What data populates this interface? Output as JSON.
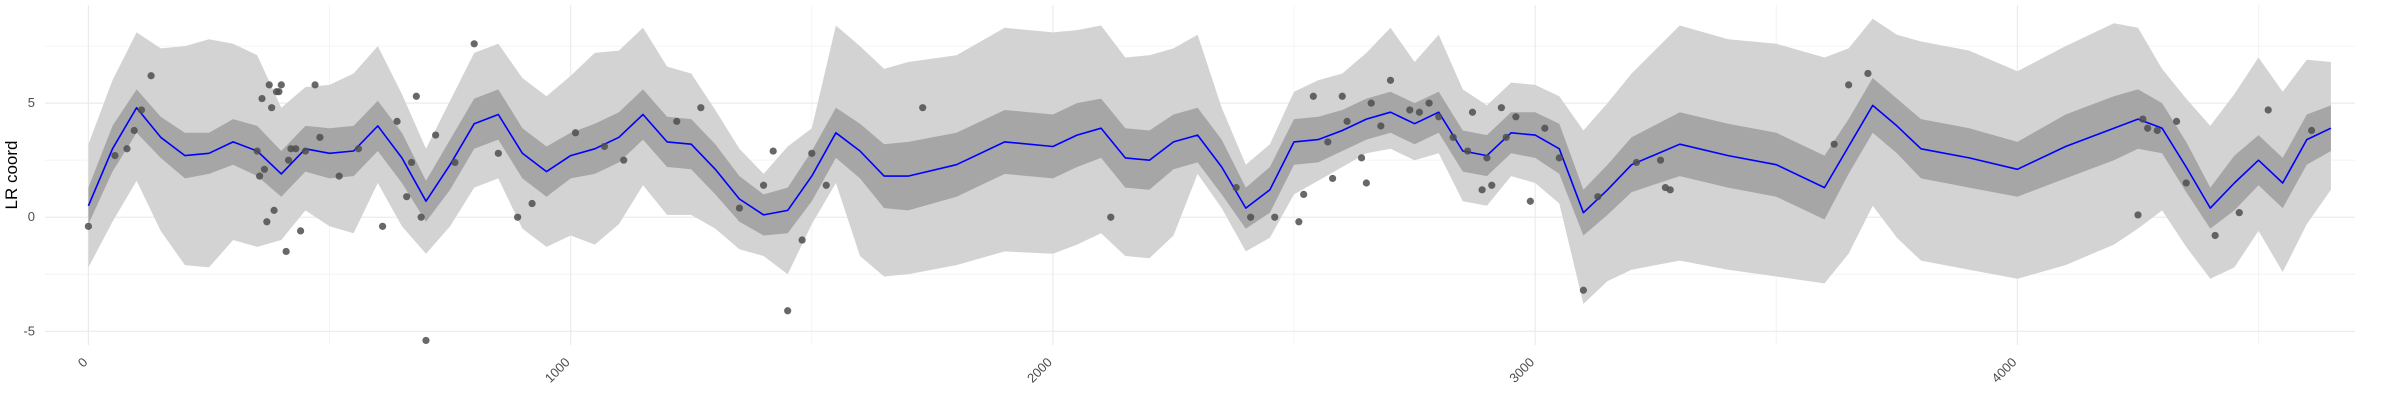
{
  "chart_data": {
    "type": "line",
    "title": "",
    "xlabel": "",
    "ylabel": "LR coord",
    "xlim": [
      -90,
      4700
    ],
    "ylim": [
      -5.6,
      9.3
    ],
    "x_ticks": [
      0,
      1000,
      2000,
      3000,
      4000
    ],
    "x_tick_labels": [
      "0",
      "1000",
      "2000",
      "3000",
      "4000"
    ],
    "y_ticks": [
      -5,
      0,
      5
    ],
    "y_tick_labels": [
      "-5",
      "0",
      "5"
    ],
    "grid": true,
    "legend": "none",
    "colors": {
      "mean_line": "#0000ff",
      "inner_band": "#a6a6a6",
      "outer_band": "#d3d3d3",
      "points": "#4d4d4d",
      "grid_major": "#ebebeb",
      "grid_minor": "#f4f4f4"
    },
    "series": [
      {
        "type": "line",
        "x": [
          0,
          50,
          100,
          150,
          200,
          250,
          300,
          350,
          400,
          450,
          500,
          550,
          600,
          650,
          700,
          750,
          800,
          850,
          900,
          950,
          1000,
          1050,
          1100,
          1150,
          1200,
          1250,
          1300,
          1350,
          1400,
          1450,
          1500,
          1550,
          1600,
          1650,
          1700,
          1800,
          1900,
          2000,
          2050,
          2100,
          2150,
          2200,
          2250,
          2300,
          2350,
          2400,
          2450,
          2500,
          2550,
          2600,
          2650,
          2700,
          2750,
          2800,
          2850,
          2900,
          2950,
          3000,
          3050,
          3100,
          3150,
          3200,
          3300,
          3400,
          3500,
          3600,
          3650,
          3700,
          3750,
          3800,
          3900,
          4000,
          4100,
          4200,
          4250,
          4300,
          4350,
          4400,
          4450,
          4500,
          4550,
          4600,
          4650
        ],
        "y": [
          0.5,
          3.0,
          4.8,
          3.5,
          2.7,
          2.8,
          3.3,
          2.9,
          1.9,
          3.0,
          2.8,
          2.9,
          4.0,
          2.6,
          0.7,
          2.3,
          4.1,
          4.5,
          2.8,
          2.0,
          2.7,
          3.0,
          3.5,
          4.5,
          3.3,
          3.2,
          2.1,
          0.8,
          0.1,
          0.3,
          1.8,
          3.7,
          2.9,
          1.8,
          1.8,
          2.3,
          3.3,
          3.1,
          3.6,
          3.9,
          2.6,
          2.5,
          3.3,
          3.6,
          2.2,
          0.4,
          1.2,
          3.3,
          3.4,
          3.8,
          4.3,
          4.6,
          4.1,
          4.6,
          2.9,
          2.7,
          3.7,
          3.6,
          3.0,
          0.2,
          1.2,
          2.3,
          3.2,
          2.7,
          2.3,
          1.3,
          3.1,
          4.9,
          4.0,
          3.0,
          2.6,
          2.1,
          3.1,
          3.9,
          4.3,
          3.9,
          2.2,
          0.4,
          1.5,
          2.5,
          1.5,
          3.4,
          3.9
        ],
        "inner_lower": [
          -0.3,
          2.0,
          3.7,
          2.6,
          1.7,
          1.9,
          2.3,
          1.8,
          0.9,
          2.0,
          1.7,
          1.8,
          2.9,
          1.5,
          -0.2,
          1.2,
          3.0,
          3.4,
          1.7,
          0.9,
          1.7,
          1.9,
          2.4,
          3.4,
          2.2,
          2.1,
          1.0,
          -0.2,
          -0.8,
          -0.7,
          0.7,
          2.6,
          1.7,
          0.4,
          0.3,
          0.9,
          1.9,
          1.7,
          2.2,
          2.6,
          1.3,
          1.2,
          2.1,
          2.4,
          1.0,
          -0.5,
          0.2,
          2.3,
          2.4,
          2.9,
          3.4,
          3.7,
          3.2,
          3.7,
          2.0,
          1.8,
          2.8,
          2.6,
          1.9,
          -0.8,
          0.1,
          1.1,
          1.8,
          1.3,
          0.9,
          -0.1,
          1.9,
          3.7,
          2.8,
          1.7,
          1.3,
          0.9,
          1.7,
          2.5,
          3.0,
          2.8,
          1.1,
          -0.5,
          0.3,
          1.4,
          0.4,
          2.3,
          2.9
        ],
        "inner_upper": [
          1.3,
          4.0,
          5.6,
          4.4,
          3.7,
          3.7,
          4.3,
          4.0,
          2.9,
          4.0,
          3.9,
          4.0,
          5.1,
          3.7,
          1.6,
          3.4,
          5.2,
          5.6,
          3.9,
          3.1,
          3.7,
          4.1,
          4.6,
          5.6,
          4.4,
          4.3,
          3.2,
          1.8,
          1.0,
          1.3,
          2.9,
          4.8,
          4.1,
          3.2,
          3.3,
          3.7,
          4.7,
          4.5,
          5.0,
          5.2,
          3.9,
          3.8,
          4.5,
          4.8,
          3.4,
          1.3,
          2.2,
          4.3,
          4.4,
          4.7,
          5.2,
          5.5,
          5.0,
          5.5,
          3.8,
          3.6,
          4.6,
          4.6,
          4.1,
          1.2,
          2.3,
          3.5,
          4.6,
          4.1,
          3.7,
          2.7,
          4.3,
          6.1,
          5.2,
          4.3,
          3.9,
          3.3,
          4.5,
          5.3,
          5.6,
          5.0,
          3.3,
          1.3,
          2.7,
          3.6,
          2.6,
          4.5,
          4.9
        ],
        "outer_lower": [
          -2.2,
          -0.2,
          1.6,
          -0.6,
          -2.1,
          -2.2,
          -1.0,
          -1.3,
          -1.0,
          0.3,
          -0.4,
          -0.7,
          1.5,
          -0.4,
          -1.6,
          -0.4,
          1.3,
          1.7,
          -0.5,
          -1.3,
          -0.8,
          -1.2,
          -0.3,
          1.4,
          0.1,
          0.1,
          -0.5,
          -1.4,
          -1.7,
          -2.5,
          -0.3,
          1.5,
          -1.7,
          -2.6,
          -2.5,
          -2.1,
          -1.5,
          -1.6,
          -1.2,
          -0.7,
          -1.7,
          -1.8,
          -0.8,
          1.9,
          0.4,
          -1.5,
          -0.9,
          1.0,
          1.6,
          2.2,
          2.8,
          3.0,
          2.5,
          2.8,
          0.7,
          0.5,
          1.8,
          1.5,
          0.6,
          -3.8,
          -2.8,
          -2.3,
          -1.9,
          -2.3,
          -2.6,
          -2.9,
          -1.6,
          0.5,
          -0.9,
          -1.9,
          -2.3,
          -2.7,
          -2.1,
          -1.2,
          -0.5,
          0.3,
          -1.3,
          -2.7,
          -2.2,
          -0.6,
          -2.4,
          -0.3,
          1.2
        ],
        "outer_upper": [
          3.2,
          6.0,
          8.1,
          7.4,
          7.5,
          7.8,
          7.6,
          7.1,
          4.8,
          5.7,
          5.8,
          6.3,
          7.5,
          5.4,
          3.0,
          5.1,
          7.2,
          7.6,
          6.1,
          5.3,
          6.2,
          7.2,
          7.3,
          8.3,
          6.6,
          6.3,
          4.7,
          3.0,
          1.9,
          3.1,
          3.9,
          8.4,
          7.5,
          6.5,
          6.8,
          7.1,
          8.3,
          8.1,
          8.2,
          8.4,
          7.0,
          7.1,
          7.4,
          8.0,
          4.8,
          2.3,
          3.2,
          5.5,
          6.0,
          6.3,
          7.2,
          8.3,
          6.8,
          8.0,
          5.6,
          4.9,
          5.9,
          5.8,
          5.3,
          3.8,
          5.0,
          6.3,
          8.4,
          7.8,
          7.6,
          7.0,
          7.4,
          8.7,
          8.0,
          7.7,
          7.3,
          6.4,
          7.5,
          8.5,
          8.3,
          6.5,
          5.2,
          4.0,
          5.4,
          7.0,
          5.5,
          6.9,
          6.8
        ]
      },
      {
        "type": "scatter",
        "x": [
          0,
          55,
          80,
          95,
          110,
          130,
          350,
          355,
          360,
          365,
          370,
          375,
          380,
          385,
          390,
          395,
          400,
          410,
          415,
          420,
          430,
          440,
          450,
          470,
          480,
          520,
          560,
          610,
          640,
          660,
          670,
          680,
          690,
          700,
          720,
          760,
          800,
          850,
          890,
          920,
          1010,
          1070,
          1110,
          1220,
          1270,
          1350,
          1400,
          1420,
          1450,
          1480,
          1500,
          1530,
          1730,
          2120,
          2380,
          2410,
          2460,
          2510,
          2520,
          2540,
          2570,
          2580,
          2600,
          2610,
          2640,
          2650,
          2660,
          2680,
          2700,
          2740,
          2760,
          2780,
          2800,
          2830,
          2860,
          2870,
          2890,
          2900,
          2910,
          2930,
          2940,
          2960,
          2990,
          3020,
          3050,
          3100,
          3130,
          3210,
          3260,
          3270,
          3280,
          3620,
          3650,
          3690,
          4250,
          4260,
          4270,
          4290,
          4330,
          4350,
          4410,
          4460,
          4520,
          4610
        ],
        "y": [
          -0.4,
          2.7,
          3.0,
          3.8,
          4.7,
          6.2,
          2.9,
          1.8,
          5.2,
          2.1,
          -0.2,
          5.8,
          4.8,
          0.3,
          5.5,
          5.5,
          5.8,
          -1.5,
          2.5,
          3.0,
          3.0,
          -0.6,
          2.9,
          5.8,
          3.5,
          1.8,
          3.0,
          -0.4,
          4.2,
          0.9,
          2.4,
          5.3,
          0.0,
          -5.4,
          3.6,
          2.4,
          7.6,
          2.8,
          0.0,
          0.6,
          3.7,
          3.1,
          2.5,
          4.2,
          4.8,
          0.4,
          1.4,
          2.9,
          -4.1,
          -1.0,
          2.8,
          1.4,
          4.8,
          0.0,
          1.3,
          0.0,
          0.0,
          -0.2,
          1.0,
          5.3,
          3.3,
          1.7,
          5.3,
          4.2,
          2.6,
          1.5,
          5.0,
          4.0,
          6.0,
          4.7,
          4.6,
          5.0,
          4.4,
          3.5,
          2.9,
          4.6,
          1.2,
          2.6,
          1.4,
          4.8,
          3.5,
          4.4,
          0.7,
          3.9,
          2.6,
          -3.2,
          0.9,
          2.4,
          2.5,
          1.3,
          1.2,
          3.2,
          5.8,
          6.3,
          0.1,
          4.3,
          3.9,
          3.8,
          4.2,
          1.5,
          -0.8,
          0.2,
          4.7,
          3.8
        ]
      }
    ]
  }
}
